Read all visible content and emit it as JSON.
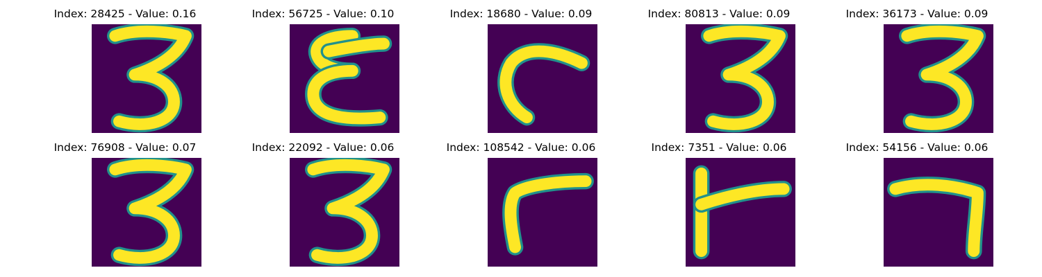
{
  "figure": {
    "background": "#ffffff",
    "image_background": "#440154",
    "stroke_color": "#fde725",
    "edge_color": "#21918c",
    "colormap": "viridis",
    "panels": [
      {
        "index": "28425",
        "value": "0.16",
        "title": "Index: 28425 - Value: 0.16",
        "glyph": "3"
      },
      {
        "index": "56725",
        "value": "0.10",
        "title": "Index: 56725 - Value: 0.10",
        "glyph": "epsilon"
      },
      {
        "index": "18680",
        "value": "0.09",
        "title": "Index: 18680 - Value: 0.09",
        "glyph": "hook"
      },
      {
        "index": "80813",
        "value": "0.09",
        "title": "Index: 80813 - Value: 0.09",
        "glyph": "3"
      },
      {
        "index": "36173",
        "value": "0.09",
        "title": "Index: 36173 - Value: 0.09",
        "glyph": "3"
      },
      {
        "index": "76908",
        "value": "0.07",
        "title": "Index: 76908 - Value: 0.07",
        "glyph": "3"
      },
      {
        "index": "22092",
        "value": "0.06",
        "title": "Index: 22092 - Value: 0.06",
        "glyph": "3"
      },
      {
        "index": "108542",
        "value": "0.06",
        "title": "Index: 108542 - Value: 0.06",
        "glyph": "gamma"
      },
      {
        "index": "7351",
        "value": "0.06",
        "title": "Index: 7351 - Value: 0.06",
        "glyph": "t-shape"
      },
      {
        "index": "54156",
        "value": "0.06",
        "title": "Index: 54156 - Value: 0.06",
        "glyph": "7"
      }
    ]
  }
}
